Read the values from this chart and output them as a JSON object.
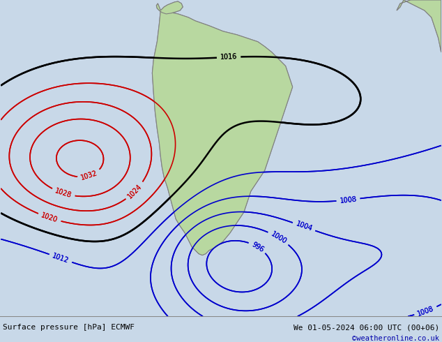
{
  "title_left": "Surface pressure [hPa] ECMWF",
  "title_right": "We 01-05-2024 06:00 UTC (00+06)",
  "copyright": "©weatheronline.co.uk",
  "bg_color": "#c8d8e8",
  "land_color": "#b8d8a0",
  "border_color": "#808080",
  "isobar_blue_color": "#0000cc",
  "isobar_red_color": "#cc0000",
  "isobar_black_color": "#000000",
  "text_color_black": "#000000",
  "text_color_blue": "#0000aa",
  "text_color_red": "#cc0000",
  "bottom_bar_color": "#d0d0d0",
  "font_size_labels": 8,
  "fig_width": 6.34,
  "fig_height": 4.9,
  "dpi": 100
}
